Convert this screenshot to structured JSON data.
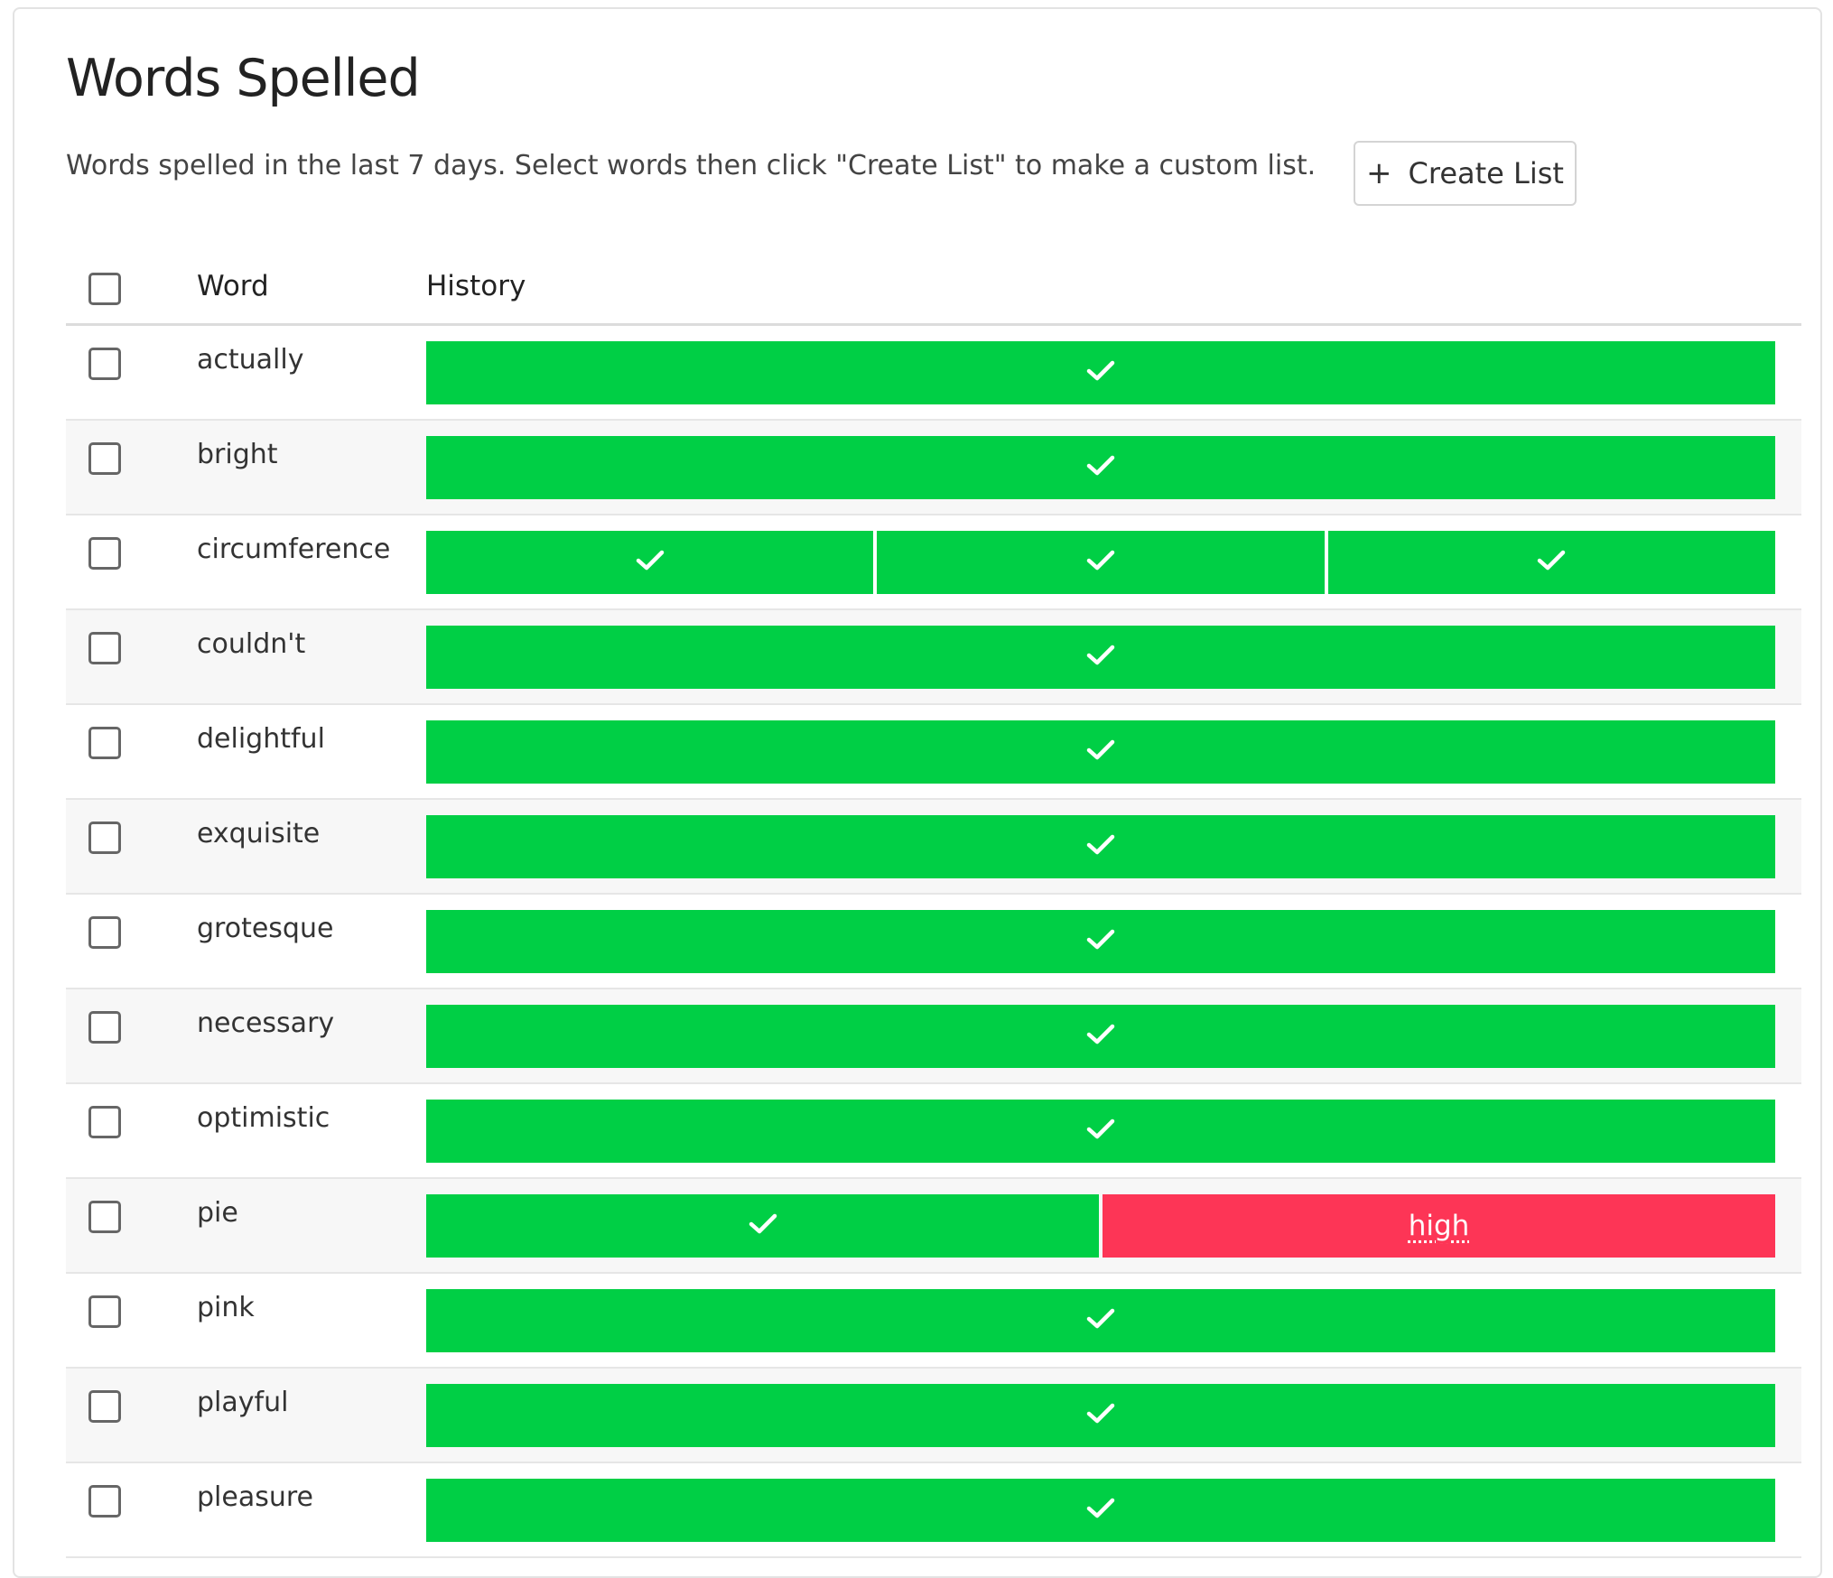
{
  "header": {
    "title": "Words Spelled",
    "description": "Words spelled in the last 7 days. Select words then click \"Create List\" to make a custom list.",
    "create_button_label": "Create List",
    "create_button_icon": "plus-icon"
  },
  "table": {
    "col_word": "Word",
    "col_history": "History"
  },
  "colors": {
    "correct": "#00cf45",
    "incorrect": "#fd3556"
  },
  "rows": [
    {
      "word": "actually",
      "history": [
        {
          "result": "correct"
        }
      ]
    },
    {
      "word": "bright",
      "history": [
        {
          "result": "correct"
        }
      ]
    },
    {
      "word": "circumference",
      "history": [
        {
          "result": "correct"
        },
        {
          "result": "correct"
        },
        {
          "result": "correct"
        }
      ]
    },
    {
      "word": "couldn't",
      "history": [
        {
          "result": "correct"
        }
      ]
    },
    {
      "word": "delightful",
      "history": [
        {
          "result": "correct"
        }
      ]
    },
    {
      "word": "exquisite",
      "history": [
        {
          "result": "correct"
        }
      ]
    },
    {
      "word": "grotesque",
      "history": [
        {
          "result": "correct"
        }
      ]
    },
    {
      "word": "necessary",
      "history": [
        {
          "result": "correct"
        }
      ]
    },
    {
      "word": "optimistic",
      "history": [
        {
          "result": "correct"
        }
      ]
    },
    {
      "word": "pie",
      "history": [
        {
          "result": "correct"
        },
        {
          "result": "incorrect",
          "attempt": "high"
        }
      ]
    },
    {
      "word": "pink",
      "history": [
        {
          "result": "correct"
        }
      ]
    },
    {
      "word": "playful",
      "history": [
        {
          "result": "correct"
        }
      ]
    },
    {
      "word": "pleasure",
      "history": [
        {
          "result": "correct"
        }
      ]
    }
  ]
}
